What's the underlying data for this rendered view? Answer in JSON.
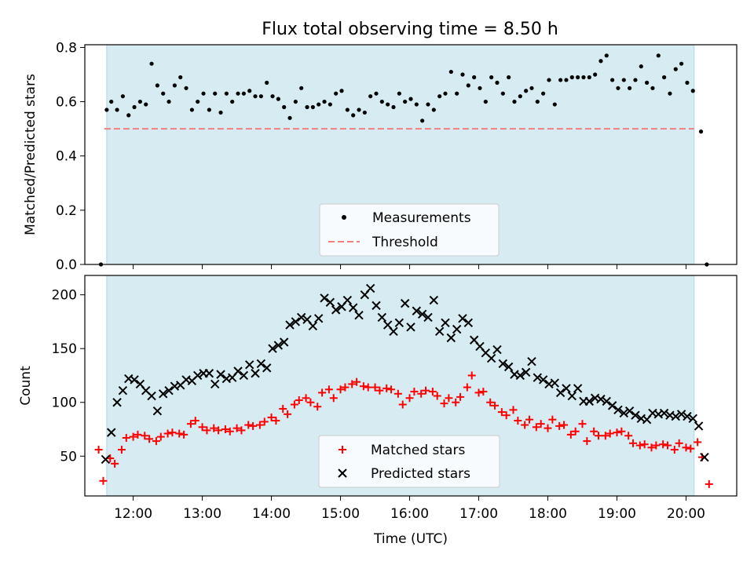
{
  "title": "Flux total observing time = 8.50 h",
  "colors": {
    "shade": "#add8e6",
    "measurement": "#000000",
    "threshold": "#f08080",
    "matched": "#ff0000",
    "predicted": "#000000"
  },
  "chart_data": [
    {
      "type": "scatter",
      "panel": "top",
      "ylabel": "Matched/Predicted stars",
      "ylim": [
        0,
        0.81
      ],
      "yticks": [
        0,
        0.2,
        0.4,
        0.6,
        0.8
      ],
      "ytick_labels": [
        "0.0",
        "0.2",
        "0.4",
        "0.6",
        "0.8"
      ],
      "xlim": [
        "11:18",
        "20:44"
      ],
      "shaded_span": [
        "11:37",
        "20:07"
      ],
      "legend": {
        "position": "lower-center",
        "labels": [
          "Measurements",
          "Threshold"
        ]
      },
      "threshold": {
        "name": "Threshold",
        "value": 0.5,
        "x_range": [
          "11:35",
          "20:07"
        ]
      },
      "series": [
        {
          "name": "Measurements",
          "x": [
            "11:32",
            "11:37",
            "11:41",
            "11:46",
            "11:51",
            "11:56",
            "12:01",
            "12:06",
            "12:11",
            "12:16",
            "12:21",
            "12:26",
            "12:31",
            "12:36",
            "12:41",
            "12:46",
            "12:51",
            "12:56",
            "13:01",
            "13:06",
            "13:11",
            "13:16",
            "13:21",
            "13:26",
            "13:31",
            "13:36",
            "13:41",
            "13:46",
            "13:51",
            "13:56",
            "14:01",
            "14:06",
            "14:11",
            "14:16",
            "14:21",
            "14:26",
            "14:31",
            "14:36",
            "14:41",
            "14:46",
            "14:51",
            "14:56",
            "15:01",
            "15:06",
            "15:11",
            "15:16",
            "15:21",
            "15:26",
            "15:31",
            "15:36",
            "15:41",
            "15:46",
            "15:51",
            "15:56",
            "16:01",
            "16:06",
            "16:11",
            "16:16",
            "16:21",
            "16:26",
            "16:31",
            "16:36",
            "16:41",
            "16:46",
            "16:51",
            "16:56",
            "17:01",
            "17:06",
            "17:11",
            "17:16",
            "17:21",
            "17:26",
            "17:31",
            "17:36",
            "17:41",
            "17:46",
            "17:51",
            "17:56",
            "18:01",
            "18:06",
            "18:11",
            "18:16",
            "18:21",
            "18:26",
            "18:31",
            "18:36",
            "18:41",
            "18:46",
            "18:51",
            "18:56",
            "19:01",
            "19:06",
            "19:11",
            "19:16",
            "19:21",
            "19:26",
            "19:31",
            "19:36",
            "19:41",
            "19:46",
            "19:51",
            "19:56",
            "20:01",
            "20:06",
            "20:13",
            "20:18"
          ],
          "y": [
            0.0,
            0.57,
            0.6,
            0.57,
            0.62,
            0.55,
            0.58,
            0.6,
            0.59,
            0.74,
            0.66,
            0.63,
            0.6,
            0.66,
            0.69,
            0.65,
            0.57,
            0.6,
            0.63,
            0.57,
            0.63,
            0.56,
            0.63,
            0.6,
            0.63,
            0.63,
            0.64,
            0.62,
            0.62,
            0.67,
            0.62,
            0.61,
            0.58,
            0.54,
            0.6,
            0.65,
            0.58,
            0.58,
            0.59,
            0.6,
            0.59,
            0.63,
            0.64,
            0.57,
            0.55,
            0.57,
            0.56,
            0.62,
            0.63,
            0.6,
            0.59,
            0.58,
            0.63,
            0.6,
            0.61,
            0.59,
            0.53,
            0.59,
            0.57,
            0.62,
            0.63,
            0.71,
            0.63,
            0.7,
            0.66,
            0.69,
            0.65,
            0.6,
            0.69,
            0.67,
            0.63,
            0.69,
            0.6,
            0.62,
            0.64,
            0.65,
            0.6,
            0.63,
            0.68,
            0.59,
            0.68,
            0.68,
            0.69,
            0.69,
            0.69,
            0.69,
            0.7,
            0.75,
            0.77,
            0.68,
            0.65,
            0.68,
            0.65,
            0.68,
            0.73,
            0.67,
            0.65,
            0.77,
            0.69,
            0.63,
            0.72,
            0.74,
            0.67,
            0.64,
            0.49,
            0.0
          ]
        }
      ]
    },
    {
      "type": "scatter",
      "panel": "bottom",
      "xlabel": "Time (UTC)",
      "ylabel": "Count",
      "ylim": [
        13,
        218
      ],
      "yticks": [
        50,
        100,
        150,
        200
      ],
      "ytick_labels": [
        "50",
        "100",
        "150",
        "200"
      ],
      "xlim": [
        "11:18",
        "20:44"
      ],
      "xticks": [
        "12:00",
        "13:00",
        "14:00",
        "15:00",
        "16:00",
        "17:00",
        "18:00",
        "19:00",
        "20:00"
      ],
      "shaded_span": [
        "11:37",
        "20:07"
      ],
      "legend": {
        "position": "lower-center",
        "labels": [
          "Matched stars",
          "Predicted stars"
        ]
      },
      "series": [
        {
          "name": "Matched stars",
          "marker": "plus",
          "x": [
            "11:30",
            "11:34",
            "11:40",
            "11:44",
            "11:50",
            "11:54",
            "12:00",
            "12:04",
            "12:10",
            "12:14",
            "12:20",
            "12:24",
            "12:30",
            "12:34",
            "12:40",
            "12:44",
            "12:50",
            "12:54",
            "13:00",
            "13:04",
            "13:10",
            "13:14",
            "13:20",
            "13:24",
            "13:30",
            "13:34",
            "13:40",
            "13:44",
            "13:50",
            "13:54",
            "14:00",
            "14:04",
            "14:10",
            "14:14",
            "14:20",
            "14:24",
            "14:30",
            "14:34",
            "14:40",
            "14:44",
            "14:50",
            "14:54",
            "15:00",
            "15:04",
            "15:10",
            "15:14",
            "15:20",
            "15:24",
            "15:30",
            "15:34",
            "15:40",
            "15:44",
            "15:50",
            "15:54",
            "16:00",
            "16:04",
            "16:10",
            "16:14",
            "16:20",
            "16:24",
            "16:30",
            "16:34",
            "16:40",
            "16:44",
            "16:50",
            "16:54",
            "17:00",
            "17:04",
            "17:10",
            "17:14",
            "17:20",
            "17:24",
            "17:30",
            "17:34",
            "17:40",
            "17:44",
            "17:50",
            "17:54",
            "18:00",
            "18:04",
            "18:10",
            "18:14",
            "18:20",
            "18:24",
            "18:30",
            "18:34",
            "18:40",
            "18:44",
            "18:50",
            "18:54",
            "19:00",
            "19:04",
            "19:10",
            "19:14",
            "19:20",
            "19:24",
            "19:30",
            "19:34",
            "19:40",
            "19:44",
            "19:50",
            "19:54",
            "20:00",
            "20:04",
            "20:10",
            "20:14",
            "20:20"
          ],
          "y": [
            56,
            27,
            48,
            43,
            56,
            67,
            68,
            70,
            69,
            66,
            64,
            68,
            71,
            72,
            71,
            70,
            80,
            83,
            77,
            74,
            76,
            74,
            75,
            73,
            76,
            74,
            79,
            78,
            79,
            82,
            86,
            83,
            94,
            89,
            98,
            102,
            104,
            100,
            96,
            109,
            112,
            104,
            112,
            114,
            117,
            119,
            115,
            114,
            114,
            111,
            113,
            112,
            108,
            98,
            104,
            110,
            108,
            111,
            110,
            106,
            99,
            104,
            100,
            105,
            114,
            125,
            109,
            110,
            100,
            97,
            91,
            88,
            93,
            83,
            79,
            84,
            77,
            80,
            76,
            84,
            78,
            79,
            70,
            73,
            80,
            64,
            73,
            69,
            69,
            71,
            72,
            73,
            69,
            62,
            60,
            61,
            58,
            60,
            61,
            60,
            56,
            62,
            58,
            57,
            63,
            49,
            24
          ]
        },
        {
          "name": "Predicted stars",
          "marker": "x",
          "x": [
            "11:36",
            "11:41",
            "11:46",
            "11:51",
            "11:56",
            "12:01",
            "12:06",
            "12:11",
            "12:16",
            "12:21",
            "12:26",
            "12:31",
            "12:36",
            "12:41",
            "12:46",
            "12:51",
            "12:56",
            "13:01",
            "13:06",
            "13:11",
            "13:16",
            "13:21",
            "13:26",
            "13:31",
            "13:36",
            "13:41",
            "13:46",
            "13:51",
            "13:56",
            "14:01",
            "14:06",
            "14:11",
            "14:16",
            "14:21",
            "14:26",
            "14:31",
            "14:36",
            "14:41",
            "14:46",
            "14:51",
            "14:56",
            "15:01",
            "15:06",
            "15:11",
            "15:16",
            "15:21",
            "15:26",
            "15:31",
            "15:36",
            "15:41",
            "15:46",
            "15:51",
            "15:56",
            "16:01",
            "16:06",
            "16:11",
            "16:16",
            "16:21",
            "16:26",
            "16:31",
            "16:36",
            "16:41",
            "16:46",
            "16:51",
            "16:56",
            "17:01",
            "17:06",
            "17:11",
            "17:16",
            "17:21",
            "17:26",
            "17:31",
            "17:36",
            "17:41",
            "17:46",
            "17:51",
            "17:56",
            "18:01",
            "18:06",
            "18:11",
            "18:16",
            "18:21",
            "18:26",
            "18:31",
            "18:36",
            "18:41",
            "18:46",
            "18:51",
            "18:56",
            "19:01",
            "19:06",
            "19:11",
            "19:16",
            "19:21",
            "19:26",
            "19:31",
            "19:36",
            "19:41",
            "19:46",
            "19:51",
            "19:56",
            "20:01",
            "20:06",
            "20:11",
            "20:16"
          ],
          "y": [
            47,
            72,
            100,
            111,
            122,
            121,
            117,
            111,
            106,
            92,
            108,
            111,
            115,
            116,
            121,
            120,
            125,
            127,
            127,
            117,
            126,
            122,
            123,
            129,
            125,
            135,
            127,
            136,
            132,
            150,
            153,
            156,
            172,
            175,
            179,
            177,
            171,
            178,
            197,
            193,
            186,
            189,
            195,
            188,
            181,
            200,
            206,
            190,
            179,
            172,
            166,
            174,
            192,
            170,
            185,
            182,
            179,
            195,
            166,
            174,
            160,
            168,
            178,
            174,
            158,
            152,
            146,
            141,
            149,
            136,
            133,
            126,
            125,
            128,
            138,
            123,
            121,
            117,
            118,
            109,
            113,
            106,
            113,
            101,
            101,
            104,
            103,
            101,
            97,
            93,
            90,
            92,
            88,
            85,
            84,
            90,
            89,
            90,
            88,
            87,
            89,
            87,
            85,
            78,
            49
          ]
        }
      ]
    }
  ]
}
